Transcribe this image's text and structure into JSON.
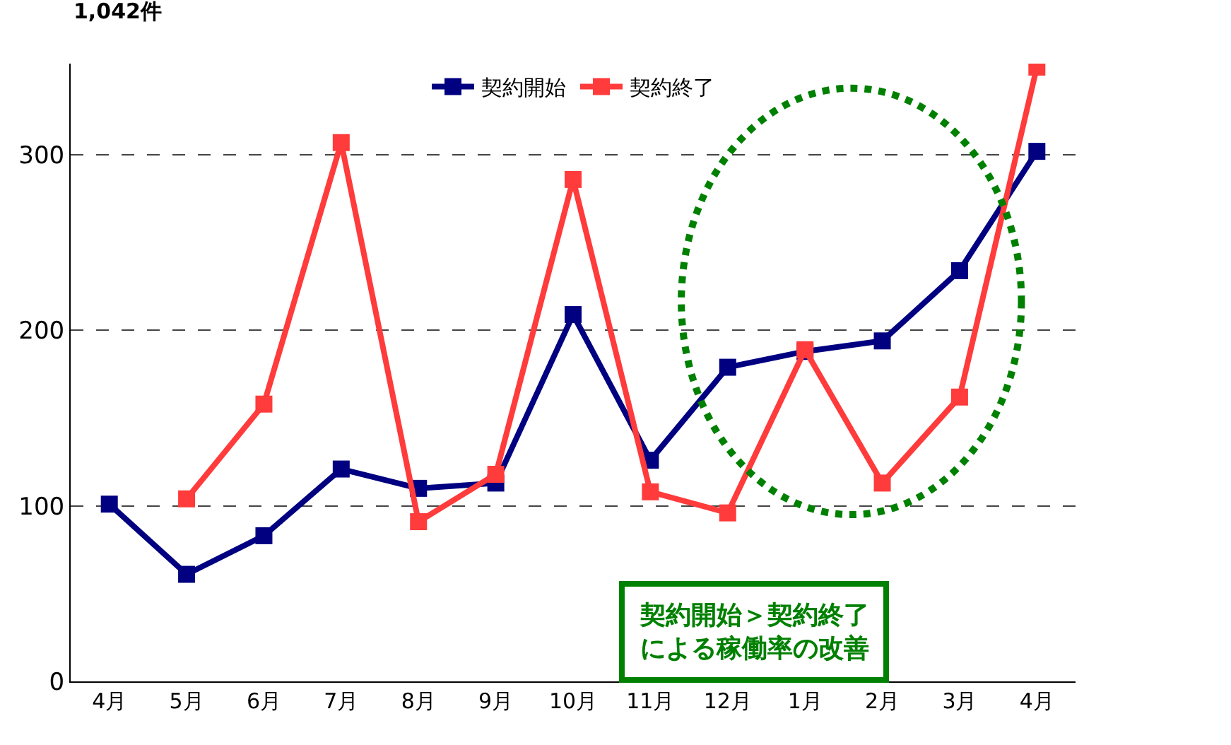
{
  "chart_data": {
    "type": "line",
    "categories": [
      "4月",
      "5月",
      "6月",
      "7月",
      "8月",
      "9月",
      "10月",
      "11月",
      "12月",
      "1月",
      "2月",
      "3月",
      "4月"
    ],
    "series": [
      {
        "name": "契約開始",
        "color": "#000080",
        "values": [
          101,
          61,
          83,
          121,
          110,
          113,
          209,
          126,
          179,
          188,
          194,
          234,
          302
        ]
      },
      {
        "name": "契約終了",
        "color": "#ff3b3b",
        "values": [
          null,
          104,
          158,
          307,
          91,
          118,
          286,
          108,
          96,
          189,
          113,
          162,
          350
        ]
      }
    ],
    "ylim": [
      0,
      352
    ],
    "yticks": [
      0,
      100,
      200,
      300
    ],
    "grid": "y",
    "legend": "top",
    "marker": "square",
    "line_style": "solid",
    "annotations": [
      "1,042件",
      "契約開始＞契約終了による稼働率の改善"
    ]
  }
}
